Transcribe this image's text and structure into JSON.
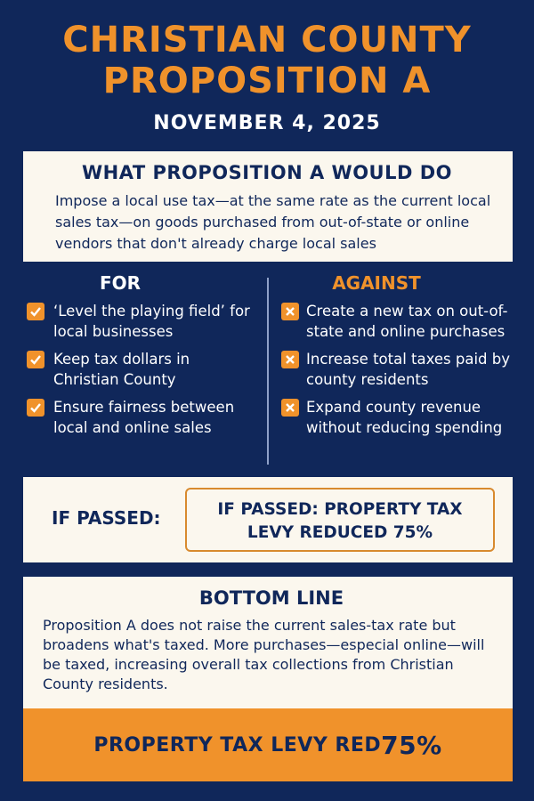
{
  "header": {
    "title_line1": "CHRISTIAN COUNTY",
    "title_line2": "PROPOSITION A",
    "date": "NOVEMBER 4, 2025"
  },
  "what": {
    "title": "WHAT PROPOSITION A WOULD DO",
    "body": "Impose a local use tax—at the same rate as the current local sales tax—on goods purchased from out-of-state or online vendors that don't already charge local sales"
  },
  "for": {
    "heading": "FOR",
    "items": [
      {
        "label": "‘Level the playing field’ for local businesses",
        "icon": "check-icon"
      },
      {
        "label": "Keep tax dollars in Christian County",
        "icon": "check-icon"
      },
      {
        "label": "Ensure fairness between local and online sales",
        "icon": "check-icon"
      }
    ]
  },
  "against": {
    "heading": "AGAINST",
    "items": [
      {
        "label": "Create a new tax on out-of-state and online purchases",
        "icon": "x-icon"
      },
      {
        "label": "Increase total taxes paid by county residents",
        "icon": "x-icon"
      },
      {
        "label": "Expand county revenue without reducing spending",
        "icon": "x-icon"
      }
    ]
  },
  "if_passed": {
    "label": "IF PASSED:",
    "box_line1": "IF PASSED: PROPERTY TAX",
    "box_line2": "LEVY REDUCED 75%"
  },
  "bottom_line": {
    "title": "BOTTOM LINE",
    "body": "Proposition A does not raise the current sales-tax rate but broadens what's taxed. More purchases—especial online—will be taxed, increasing overall tax collections from Christian County residents."
  },
  "banner": {
    "text": "PROPERTY TAX LEVY RED",
    "number": "75%"
  },
  "colors": {
    "background": "#10275a",
    "accent": "#f0922b",
    "panel": "#fbf7ee"
  }
}
